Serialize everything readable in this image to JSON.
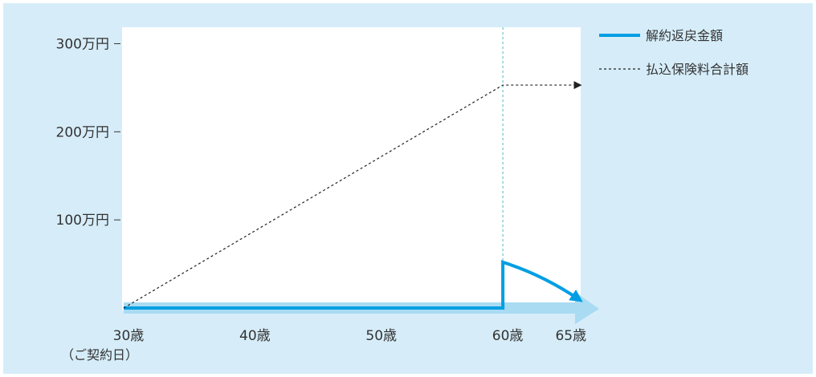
{
  "chart_data": {
    "type": "line",
    "x_categories": [
      "30歳",
      "40歳",
      "50歳",
      "60歳",
      "65歳"
    ],
    "x_values": [
      30,
      40,
      50,
      60,
      65
    ],
    "x_start_sublabel": "（ご契約日）",
    "y_ticks": [
      {
        "value": 100,
        "label": "100万円"
      },
      {
        "value": 200,
        "label": "200万円"
      },
      {
        "value": 300,
        "label": "300万円"
      }
    ],
    "ylim": [
      0,
      335
    ],
    "xlim": [
      30,
      68
    ],
    "series": [
      {
        "name": "解約返戻金額",
        "color": "#009fe3",
        "style": "solid",
        "points": [
          [
            30,
            0
          ],
          [
            60,
            0
          ],
          [
            60,
            52
          ],
          [
            62,
            45
          ],
          [
            64,
            30
          ],
          [
            66,
            10
          ]
        ]
      },
      {
        "name": "払込保険料合計額",
        "color": "#222222",
        "style": "dashed",
        "points": [
          [
            30,
            0
          ],
          [
            60,
            253
          ],
          [
            66,
            253
          ]
        ]
      }
    ],
    "annotations": [
      {
        "type": "vline",
        "x": 60,
        "color": "#4fb8c4",
        "style": "dashed"
      }
    ],
    "x_axis_arrow_color": "#a9dbf3",
    "grid": false,
    "legend_position": "top-right"
  }
}
